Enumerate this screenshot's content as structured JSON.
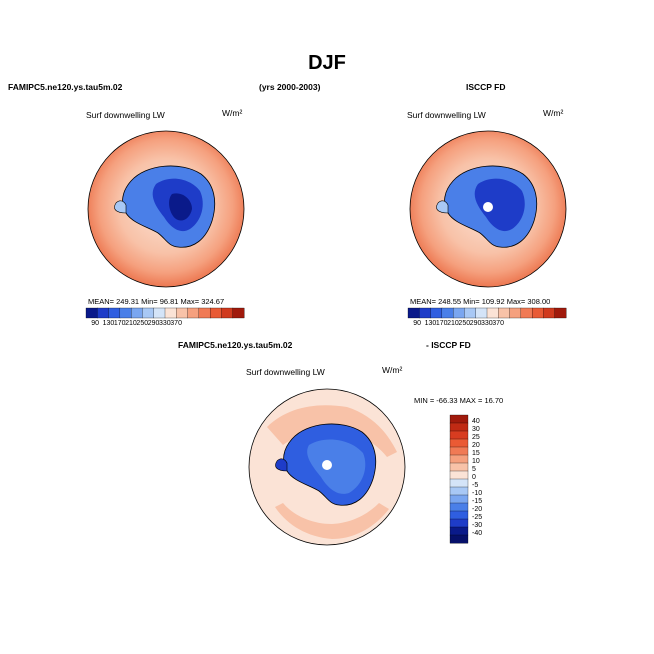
{
  "figure": {
    "title": "DJF",
    "model_name": "FAMIPC5.ne120.ys.tau5m.02",
    "years": "(yrs 2000-2003)",
    "obs_name": "ISCCP FD",
    "diff_left": "FAMIPC5.ne120.ys.tau5m.02",
    "diff_right": "- ISCCP FD"
  },
  "panels": {
    "model": {
      "label": "Surf downwelling LW",
      "units": "W/m²",
      "stats": "MEAN=  249.31   Min=   96.81   Max=  324.67"
    },
    "obs": {
      "label": "Surf downwelling LW",
      "units": "W/m²",
      "stats": "MEAN=  248.55   Min=  109.92   Max=  308.00"
    },
    "diff": {
      "label": "Surf downwelling LW",
      "units": "W/m²",
      "stats": "MIN =  -66.33  MAX =   16.70"
    }
  },
  "colorbar_abs": {
    "ticks": [
      "90",
      "130",
      "170",
      "210",
      "250",
      "290",
      "330",
      "370"
    ],
    "colors": [
      "#0a1a8a",
      "#1e3cc8",
      "#2f5ee0",
      "#4a7fe8",
      "#7aa6f0",
      "#a8c8f5",
      "#d4e4f8",
      "#fbe3d6",
      "#f8c2a8",
      "#f5a07e",
      "#f07a55",
      "#e85a35",
      "#d03a1e",
      "#a01a0c"
    ]
  },
  "colorbar_diff": {
    "ticks": [
      "40",
      "30",
      "25",
      "20",
      "15",
      "10",
      "5",
      "0",
      "-5",
      "-10",
      "-15",
      "-20",
      "-25",
      "-30",
      "-40"
    ],
    "colors": [
      "#a01a0c",
      "#c02a14",
      "#d83c20",
      "#ea5a34",
      "#f07a55",
      "#f5a07e",
      "#f8c2a8",
      "#fbe3d6",
      "#d4e4f8",
      "#a8c8f5",
      "#7aa6f0",
      "#4a7fe8",
      "#2f5ee0",
      "#1e3cc8",
      "#0a1a8a",
      "#06106a"
    ]
  }
}
